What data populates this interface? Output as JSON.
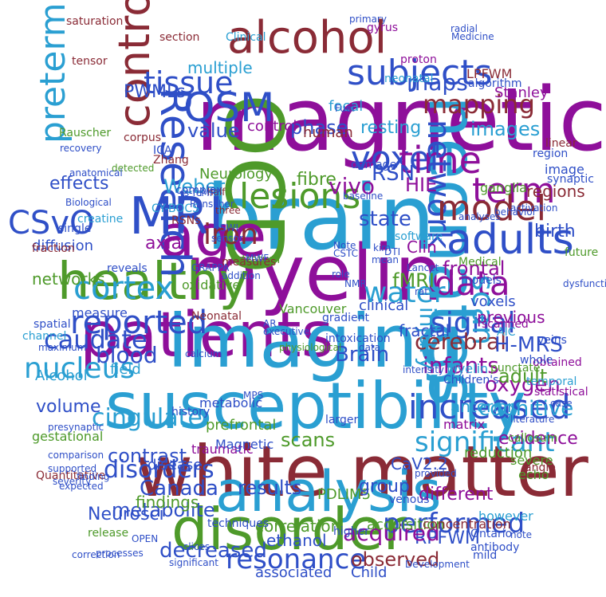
{
  "colors": {
    "background": "#ffffff",
    "purple": "#8e0f9a",
    "crimson": "#8a2b36",
    "blue": "#2f4fc7",
    "green": "#4e9a2a",
    "cyan": "#2a9fd2"
  },
  "words": [
    "magnetic",
    "myelin",
    "white matter",
    "susceptibility",
    "patients",
    "imaging",
    "analysis",
    "disorder",
    "neonates",
    "brain",
    "OCD",
    "age",
    "healthy",
    "MRI",
    "alcohol",
    "Research",
    "controls",
    "subjects",
    "adults",
    "QSM",
    "lesions",
    "voxel",
    "time",
    "tissue",
    "network",
    "term",
    "model",
    "mapping",
    "data",
    "preterm",
    "CSvO",
    "reported",
    "cortex",
    "iron",
    "water",
    "signal",
    "scan",
    "caudate",
    "nucleus",
    "cingulate",
    "blood",
    "Brain",
    "infants",
    "increased",
    "significant",
    "disorders",
    "Canada",
    "metabolite",
    "performed",
    "resonance",
    "decreased",
    "observed",
    "results",
    "scans",
    "cerebral",
    "H-MRS",
    "oxygen",
    "injury",
    "contrast",
    "cognitive",
    "images",
    "phase",
    "maps",
    "value",
    "fibre",
    "vivo",
    "RSN",
    "state",
    "PWMLs",
    "multiple",
    "control",
    "human",
    "resting",
    "focal",
    "Weber",
    "effects",
    "diffusion",
    "networks",
    "Neurosci",
    "ethanol",
    "RPFWM",
    "acquired",
    "PDLIM5",
    "group",
    "different",
    "findings",
    "disease",
    "volume",
    "field",
    "axial",
    "HIE",
    "fMRI",
    "Clin",
    "clinical",
    "previous",
    "anterior",
    "evidence",
    "adult",
    "fractal",
    "regions",
    "birth",
    "Neurology",
    "Stanley",
    "LPFWM",
    "algorithm",
    "neonatal",
    "gyrus",
    "ganglia",
    "prefrontal",
    "correlation",
    "associated",
    "Child",
    "CaV2.2",
    "acquisition",
    "concentration",
    "reduction",
    "severe",
    "echo",
    "frontal",
    "Myelin",
    "Vancouver",
    "oxidative",
    "saturation",
    "Rauscher",
    "channel",
    "fraction",
    "Quantitative",
    "spatial",
    "measure",
    "gestational",
    "Alcohol",
    "CY-BOCS",
    "creatine",
    "future",
    "veins",
    "punctate",
    "callosum",
    "temporal",
    "statistical",
    "obtained",
    "linear",
    "image",
    "region",
    "voxels",
    "matrix",
    "venous",
    "traumatic",
    "Magnetic",
    "metabolic",
    "history",
    "scanned",
    "single",
    "tensor",
    "corpus",
    "ICA",
    "Zhang",
    "complex",
    "gradient",
    "intoxication",
    "synaptic",
    "Clinical",
    "section",
    "proton",
    "radial",
    "software",
    "Medical",
    "models",
    "Children's",
    "however",
    "AIC",
    "whole",
    "mild",
    "damage",
    "Neonatal",
    "stratum",
    "measures",
    "techniques",
    "OPEN",
    "release",
    "Ontario",
    "antibody",
    "executive",
    "larger",
    "higher",
    "angle",
    "slices",
    "three",
    "RSNs",
    "half",
    "sensor",
    "GRAPPA",
    "reveals",
    "addition",
    "calcium",
    "physiological",
    "Development",
    "provided",
    "analyses",
    "intensity",
    "detected",
    "significant",
    "expected",
    "finding",
    "maximum",
    "presynaptic",
    "comparison",
    "supported",
    "severity",
    "correction",
    "processes",
    "recovery",
    "anatomical",
    "Biological",
    "activation",
    "behavior",
    "Medicine",
    "primary",
    "literature",
    "note",
    "dysfunction",
    "baseline",
    "kim",
    "mean",
    "rat",
    "role",
    "CSTC",
    "MPS",
    "AR",
    "DTI",
    "NMR",
    "Note",
    "rs-fcMRI",
    "Ranscher",
    "MWF",
    "SWI",
    "Lancet",
    "Fuel",
    "case",
    "data"
  ]
}
